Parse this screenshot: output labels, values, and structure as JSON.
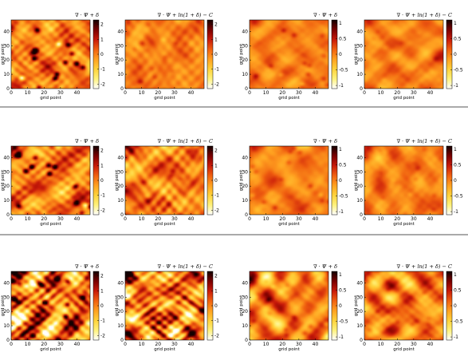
{
  "chart_data": {
    "type": "heatmap",
    "layout": "3 rows x 4 panels",
    "xlabel": "grid point",
    "ylabel": "grid point",
    "xlim": [
      0,
      48
    ],
    "ylim": [
      0,
      48
    ],
    "x_ticks": [
      "0",
      "10",
      "20",
      "30",
      "40"
    ],
    "y_ticks": [
      "0",
      "10",
      "20",
      "30",
      "40"
    ],
    "colormap": [
      "#ffffff",
      "#fff27a",
      "#ffd23a",
      "#ffa020",
      "#f06010",
      "#c81a0a",
      "#7a0000",
      "#140000"
    ],
    "panels": [
      {
        "title": "∇ · Ψ + δ",
        "cbar_ticks": [
          "2",
          "1",
          "0",
          "-1",
          "-2"
        ],
        "cbar_range": [
          -2.3,
          2.3
        ],
        "spread": 0.35,
        "seed": 11,
        "speck": 0.55,
        "fine": 0.2
      },
      {
        "title": "∇ · Ψ + ln(1 + δ) − C",
        "cbar_ticks": [
          "2",
          "1",
          "0",
          "-1",
          "-2"
        ],
        "cbar_range": [
          -2.3,
          2.3
        ],
        "spread": 0.22,
        "seed": 12,
        "speck": 0.1,
        "fine": 0.12
      },
      {
        "title": "∇ · Ψ + δ",
        "cbar_ticks": [
          "1",
          "0.5",
          "0",
          "-0.5",
          "-1"
        ],
        "cbar_range": [
          -1.1,
          1.1
        ],
        "spread": 0.22,
        "seed": 13,
        "speck": 0.15,
        "fine": 0.05
      },
      {
        "title": "∇ · Ψ + ln(1 + δ) − C",
        "cbar_ticks": [
          "1",
          "0.5",
          "0",
          "-0.5",
          "-1"
        ],
        "cbar_range": [
          -1.1,
          1.1
        ],
        "spread": 0.18,
        "seed": 14,
        "speck": 0.05,
        "fine": 0.05
      },
      {
        "title": "∇ · Ψ + δ",
        "cbar_ticks": [
          "2",
          "1",
          "0",
          "-1",
          "-2"
        ],
        "cbar_range": [
          -2.3,
          2.3
        ],
        "spread": 0.38,
        "seed": 21,
        "speck": 0.55,
        "fine": 0.25
      },
      {
        "title": "∇ · Ψ + ln(1 + δ) − C",
        "cbar_ticks": [
          "2",
          "1",
          "0",
          "-1",
          "-2"
        ],
        "cbar_range": [
          -2.3,
          2.3
        ],
        "spread": 0.3,
        "seed": 22,
        "speck": 0.12,
        "fine": 0.3
      },
      {
        "title": "∇ · Ψ + δ",
        "cbar_ticks": [
          "1",
          "0.5",
          "0",
          "-0.5",
          "-1"
        ],
        "cbar_range": [
          -1.1,
          1.1
        ],
        "spread": 0.25,
        "seed": 23,
        "speck": 0.15,
        "fine": 0.05
      },
      {
        "title": "∇ · Ψ + ln(1 + δ) − C",
        "cbar_ticks": [
          "1",
          "0.5",
          "0",
          "-0.5",
          "-1"
        ],
        "cbar_range": [
          -1.1,
          1.1
        ],
        "spread": 0.22,
        "seed": 24,
        "speck": 0.08,
        "fine": 0.05
      },
      {
        "title": "∇ · Ψ + δ",
        "cbar_ticks": [
          "2",
          "1",
          "0",
          "-1",
          "-2"
        ],
        "cbar_range": [
          -2.3,
          2.3
        ],
        "spread": 0.62,
        "seed": 31,
        "speck": 0.55,
        "fine": 0.55
      },
      {
        "title": "∇ · Ψ + ln(1 + δ) − C",
        "cbar_ticks": [
          "2",
          "1",
          "0",
          "-1",
          "-2"
        ],
        "cbar_range": [
          -2.3,
          2.3
        ],
        "spread": 0.55,
        "seed": 32,
        "speck": 0.15,
        "fine": 0.55
      },
      {
        "title": "∇ · Ψ + δ",
        "cbar_ticks": [
          "1",
          "0.5",
          "0",
          "-0.5",
          "-1"
        ],
        "cbar_range": [
          -1.1,
          1.1
        ],
        "spread": 0.48,
        "seed": 33,
        "speck": 0.15,
        "fine": 0.08
      },
      {
        "title": "∇ · Ψ + ln(1 + δ) − C",
        "cbar_ticks": [
          "1",
          "0.5",
          "0",
          "-0.5",
          "-1"
        ],
        "cbar_range": [
          -1.1,
          1.1
        ],
        "spread": 0.45,
        "seed": 34,
        "speck": 0.1,
        "fine": 0.08
      }
    ]
  }
}
